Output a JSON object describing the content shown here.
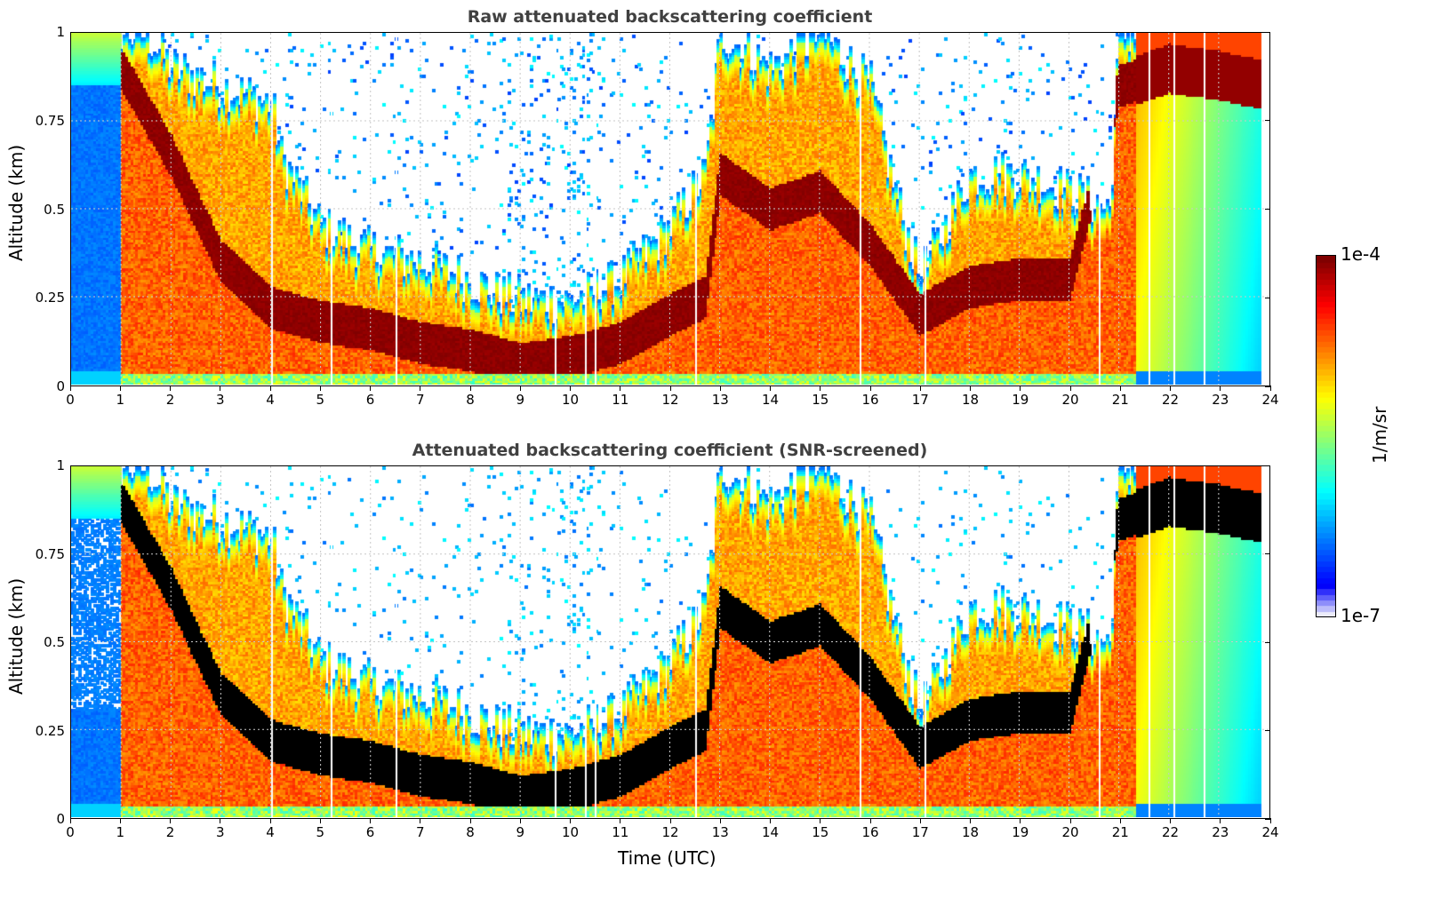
{
  "chart_data": [
    {
      "type": "heatmap",
      "title": "Raw attenuated backscattering coefficient",
      "xlabel": "",
      "ylabel": "Altitude (km)",
      "xlim": [
        0,
        24
      ],
      "ylim": [
        0,
        1
      ],
      "xticks": [
        "0",
        "1",
        "2",
        "3",
        "4",
        "5",
        "6",
        "7",
        "8",
        "9",
        "10",
        "11",
        "12",
        "13",
        "14",
        "15",
        "16",
        "17",
        "18",
        "19",
        "20",
        "21",
        "22",
        "23",
        "24"
      ],
      "yticks": [
        "0",
        "0.25",
        "0.5",
        "0.75",
        "1"
      ],
      "grid": true,
      "masked_below_threshold": false
    },
    {
      "type": "heatmap",
      "title": "Attenuated backscattering coefficient (SNR-screened)",
      "xlabel": "Time (UTC)",
      "ylabel": "Altitude (km)",
      "xlim": [
        0,
        24
      ],
      "ylim": [
        0,
        1
      ],
      "xticks": [
        "0",
        "1",
        "2",
        "3",
        "4",
        "5",
        "6",
        "7",
        "8",
        "9",
        "10",
        "11",
        "12",
        "13",
        "14",
        "15",
        "16",
        "17",
        "18",
        "19",
        "20",
        "21",
        "22",
        "23",
        "24"
      ],
      "yticks": [
        "0",
        "0.25",
        "0.5",
        "0.75",
        "1"
      ],
      "grid": true,
      "masked_below_threshold": true
    }
  ],
  "colorbar": {
    "label": "1/m/sr",
    "max_label": "1e-4",
    "min_label": "1e-7",
    "colormap": "jet",
    "scale": "log",
    "range": [
      1e-07,
      0.0001
    ]
  },
  "colors": {
    "title": "#404040",
    "grid": "#c8c8c8",
    "saturated": "#000000"
  }
}
